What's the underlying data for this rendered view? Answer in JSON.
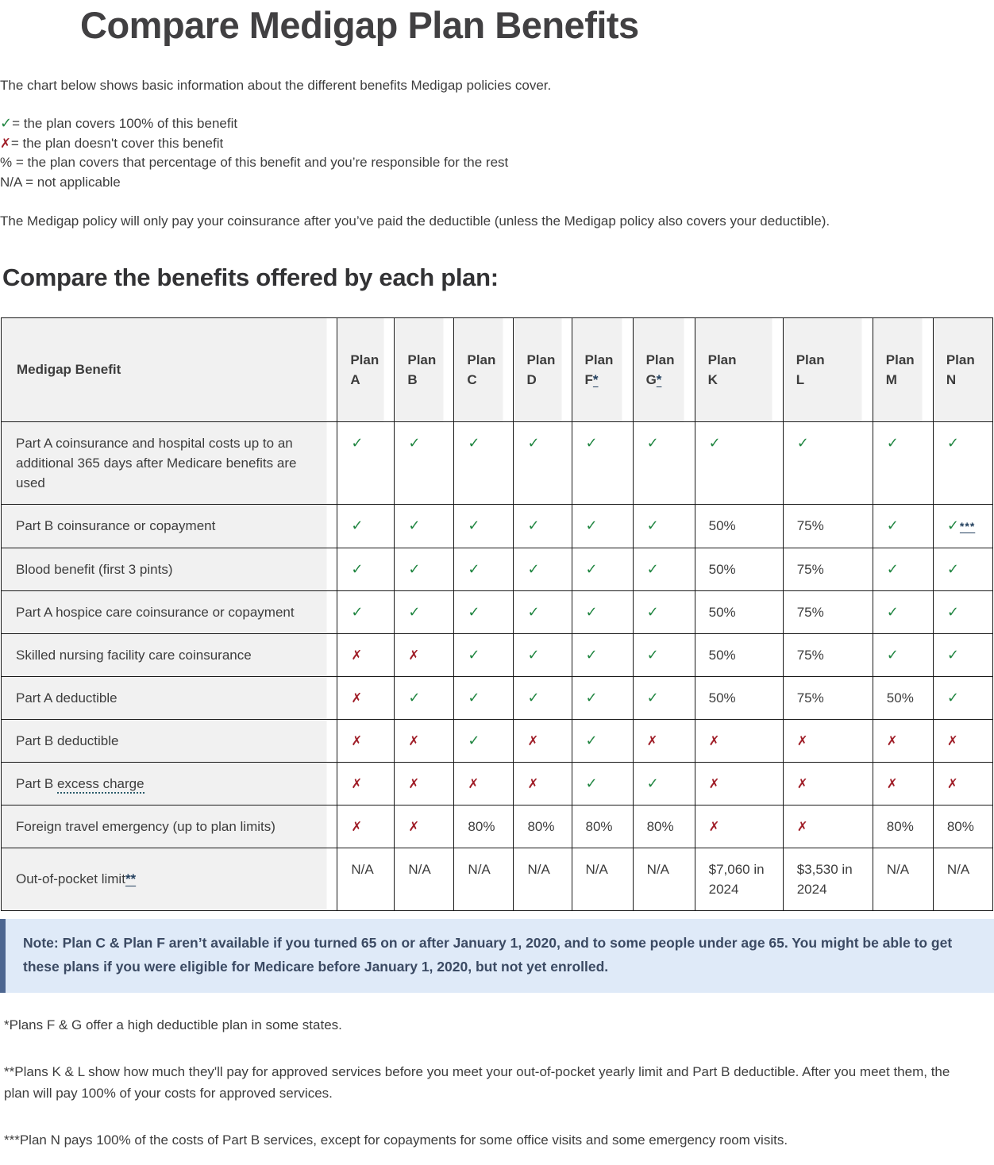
{
  "page_title": "Compare Medigap Plan Benefits",
  "intro": "The chart below shows basic information about the different benefits Medigap policies cover.",
  "legend": [
    {
      "icon": "check",
      "text": "= the plan covers 100% of this benefit"
    },
    {
      "icon": "x",
      "text": "= the plan doesn't cover this benefit"
    },
    {
      "icon": null,
      "text": "% = the plan covers that percentage of this benefit and you’re responsible for the rest"
    },
    {
      "icon": null,
      "text": "N/A = not applicable"
    }
  ],
  "deductible_note": "The Medigap policy will only pay your coinsurance after you’ve paid the deductible (unless the Medigap policy also covers your deductible).",
  "section_heading": "Compare the benefits offered by each plan:",
  "table": {
    "corner_header": "Medigap Benefit",
    "plan_word": "Plan",
    "columns": [
      {
        "letter": "A",
        "footnote": ""
      },
      {
        "letter": "B",
        "footnote": ""
      },
      {
        "letter": "C",
        "footnote": ""
      },
      {
        "letter": "D",
        "footnote": ""
      },
      {
        "letter": "F",
        "footnote": "*"
      },
      {
        "letter": "G",
        "footnote": "*"
      },
      {
        "letter": "K",
        "footnote": ""
      },
      {
        "letter": "L",
        "footnote": ""
      },
      {
        "letter": "M",
        "footnote": ""
      },
      {
        "letter": "N",
        "footnote": ""
      }
    ],
    "rows": [
      {
        "label": "Part A coinsurance and hospital costs up to an additional 365 days after Medicare benefits are used",
        "values": [
          "check",
          "check",
          "check",
          "check",
          "check",
          "check",
          "check",
          "check",
          "check",
          "check"
        ]
      },
      {
        "label": "Part B coinsurance or copayment",
        "values": [
          "check",
          "check",
          "check",
          "check",
          "check",
          "check",
          "50%",
          "75%",
          "check",
          "check***"
        ]
      },
      {
        "label": "Blood benefit (first 3 pints)",
        "values": [
          "check",
          "check",
          "check",
          "check",
          "check",
          "check",
          "50%",
          "75%",
          "check",
          "check"
        ]
      },
      {
        "label": "Part A hospice care coinsurance or copayment",
        "values": [
          "check",
          "check",
          "check",
          "check",
          "check",
          "check",
          "50%",
          "75%",
          "check",
          "check"
        ]
      },
      {
        "label": "Skilled nursing facility care coinsurance",
        "values": [
          "x",
          "x",
          "check",
          "check",
          "check",
          "check",
          "50%",
          "75%",
          "check",
          "check"
        ]
      },
      {
        "label": "Part A deductible",
        "values": [
          "x",
          "check",
          "check",
          "check",
          "check",
          "check",
          "50%",
          "75%",
          "50%",
          "check"
        ]
      },
      {
        "label": "Part B deductible",
        "values": [
          "x",
          "x",
          "check",
          "x",
          "check",
          "x",
          "x",
          "x",
          "x",
          "x"
        ]
      },
      {
        "label": "Part B excess charge",
        "label_prefix": "Part B ",
        "label_term": "excess charge",
        "values": [
          "x",
          "x",
          "x",
          "x",
          "check",
          "check",
          "x",
          "x",
          "x",
          "x"
        ]
      },
      {
        "label": "Foreign travel emergency (up to plan limits)",
        "values": [
          "x",
          "x",
          "80%",
          "80%",
          "80%",
          "80%",
          "x",
          "x",
          "80%",
          "80%"
        ]
      },
      {
        "label": "Out-of-pocket limit",
        "label_sup": "**",
        "values": [
          "N/A",
          "N/A",
          "N/A",
          "N/A",
          "N/A",
          "N/A",
          "$7,060 in 2024",
          "$3,530 in 2024",
          "N/A",
          "N/A"
        ]
      }
    ]
  },
  "note": "Note: Plan C & Plan F aren’t available if you turned 65 on or after January 1, 2020, and to some people under age 65. You might be able to get these plans if you were eligible for Medicare before January 1, 2020, but not yet enrolled.",
  "footnotes": [
    "*Plans F & G offer a high deductible plan in some states.",
    "**Plans K & L show how much they'll pay for approved services before you meet your out-of-pocket yearly limit and Part B deductible. After you meet them, the plan will pay 100% of your costs for approved services.",
    "***Plan N pays 100% of the costs of Part B services, except for copayments for some office visits and some emergency room visits."
  ],
  "colors": {
    "check_green": "#1f8540",
    "x_red": "#a01e28",
    "note_background": "#dfeaf8",
    "note_border": "#4d6690",
    "link_navy": "#24415f",
    "header_gray": "#f1f1f1",
    "table_border": "#1a1a1a"
  }
}
